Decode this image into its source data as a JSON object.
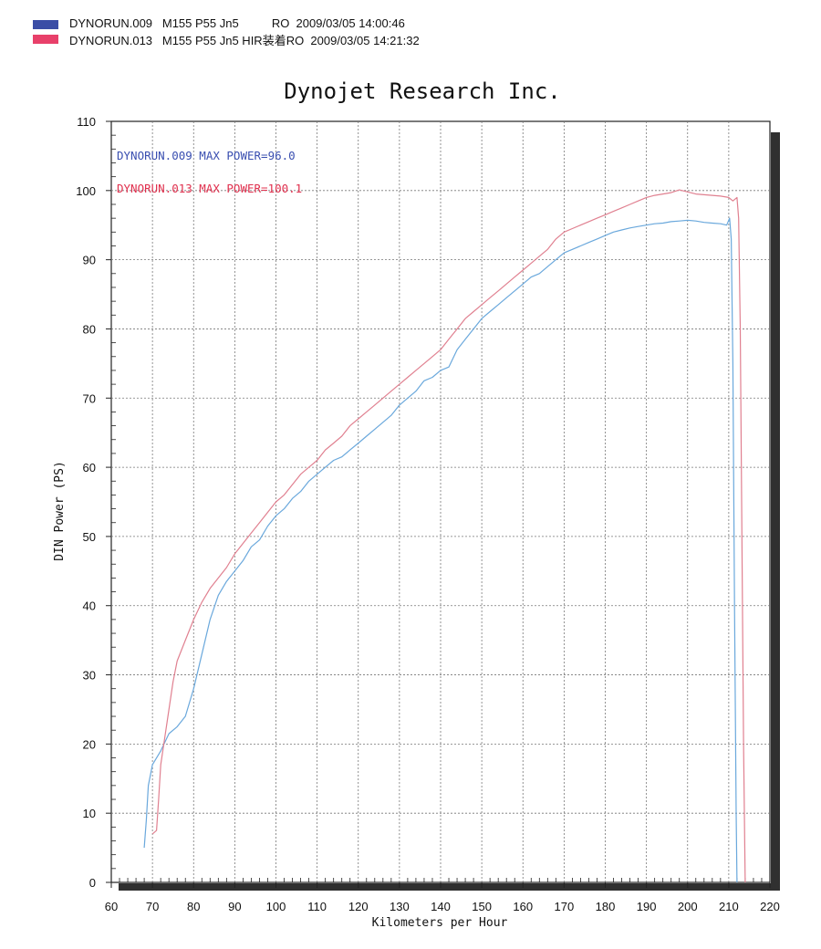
{
  "legend": [
    {
      "swatch_color": "#3b4ea6",
      "text": "DYNORUN.009   M155 P55 Jn5          RO  2009/03/05 14:00:46"
    },
    {
      "swatch_color": "#e8406a",
      "text": "DYNORUN.013   M155 P55 Jn5 HIR装着RO  2009/03/05 14:21:32"
    }
  ],
  "chart_data": {
    "type": "line",
    "title": "Dynojet Research Inc.",
    "xlabel": "Kilometers per Hour",
    "ylabel": "DIN Power (PS)",
    "xlim": [
      60,
      220
    ],
    "ylim": [
      0,
      110
    ],
    "x_ticks": [
      60,
      70,
      80,
      90,
      100,
      110,
      120,
      130,
      140,
      150,
      160,
      170,
      180,
      190,
      200,
      210,
      220
    ],
    "y_ticks": [
      0,
      10,
      20,
      30,
      40,
      50,
      60,
      70,
      80,
      90,
      100,
      110
    ],
    "grid": true,
    "annotations": [
      {
        "text": "DYNORUN.009  MAX POWER=96.0",
        "color": "#3a4fb0"
      },
      {
        "text": "DYNORUN.013  MAX POWER=100.1",
        "color": "#e0304e"
      }
    ],
    "series": [
      {
        "name": "DYNORUN.009",
        "color": "#6aa8dc",
        "points": [
          [
            68,
            5
          ],
          [
            68.5,
            9
          ],
          [
            69,
            14
          ],
          [
            70,
            17
          ],
          [
            72,
            19
          ],
          [
            74,
            21.5
          ],
          [
            76,
            22.5
          ],
          [
            78,
            24
          ],
          [
            80,
            28
          ],
          [
            82,
            33
          ],
          [
            84,
            38
          ],
          [
            86,
            41.5
          ],
          [
            88,
            43.5
          ],
          [
            90,
            45
          ],
          [
            92,
            46.5
          ],
          [
            94,
            48.5
          ],
          [
            96,
            49.5
          ],
          [
            98,
            51.5
          ],
          [
            100,
            53
          ],
          [
            102,
            54
          ],
          [
            104,
            55.5
          ],
          [
            106,
            56.5
          ],
          [
            108,
            58
          ],
          [
            110,
            59
          ],
          [
            112,
            60
          ],
          [
            114,
            61
          ],
          [
            116,
            61.5
          ],
          [
            118,
            62.5
          ],
          [
            120,
            63.5
          ],
          [
            122,
            64.5
          ],
          [
            124,
            65.5
          ],
          [
            126,
            66.5
          ],
          [
            128,
            67.5
          ],
          [
            130,
            69
          ],
          [
            132,
            70
          ],
          [
            134,
            71
          ],
          [
            136,
            72.5
          ],
          [
            138,
            73
          ],
          [
            140,
            74
          ],
          [
            142,
            74.5
          ],
          [
            144,
            77
          ],
          [
            146,
            78.5
          ],
          [
            148,
            80
          ],
          [
            150,
            81.5
          ],
          [
            152,
            82.5
          ],
          [
            154,
            83.5
          ],
          [
            156,
            84.5
          ],
          [
            158,
            85.5
          ],
          [
            160,
            86.5
          ],
          [
            162,
            87.5
          ],
          [
            164,
            88
          ],
          [
            166,
            89
          ],
          [
            168,
            90
          ],
          [
            170,
            91
          ],
          [
            172,
            91.5
          ],
          [
            174,
            92
          ],
          [
            176,
            92.5
          ],
          [
            178,
            93
          ],
          [
            180,
            93.5
          ],
          [
            182,
            94
          ],
          [
            184,
            94.3
          ],
          [
            186,
            94.6
          ],
          [
            188,
            94.8
          ],
          [
            190,
            95
          ],
          [
            192,
            95.2
          ],
          [
            194,
            95.3
          ],
          [
            196,
            95.5
          ],
          [
            198,
            95.6
          ],
          [
            200,
            95.7
          ],
          [
            202,
            95.6
          ],
          [
            204,
            95.4
          ],
          [
            206,
            95.3
          ],
          [
            208,
            95.2
          ],
          [
            209.5,
            95
          ],
          [
            210.2,
            96
          ],
          [
            210.6,
            93
          ],
          [
            211,
            75
          ],
          [
            211.4,
            40
          ],
          [
            211.8,
            10
          ],
          [
            212,
            0
          ]
        ]
      },
      {
        "name": "DYNORUN.013",
        "color": "#e08090",
        "points": [
          [
            70,
            7
          ],
          [
            71,
            7.5
          ],
          [
            71.5,
            12
          ],
          [
            72,
            17
          ],
          [
            73,
            21
          ],
          [
            74,
            25
          ],
          [
            75,
            29
          ],
          [
            76,
            32
          ],
          [
            78,
            35
          ],
          [
            80,
            38
          ],
          [
            82,
            40.5
          ],
          [
            84,
            42.5
          ],
          [
            86,
            44
          ],
          [
            88,
            45.5
          ],
          [
            90,
            47.5
          ],
          [
            92,
            49
          ],
          [
            94,
            50.5
          ],
          [
            96,
            52
          ],
          [
            98,
            53.5
          ],
          [
            100,
            55
          ],
          [
            102,
            56
          ],
          [
            104,
            57.5
          ],
          [
            106,
            59
          ],
          [
            108,
            60
          ],
          [
            110,
            61
          ],
          [
            112,
            62.5
          ],
          [
            114,
            63.5
          ],
          [
            116,
            64.5
          ],
          [
            118,
            66
          ],
          [
            120,
            67
          ],
          [
            122,
            68
          ],
          [
            124,
            69
          ],
          [
            126,
            70
          ],
          [
            128,
            71
          ],
          [
            130,
            72
          ],
          [
            132,
            73
          ],
          [
            134,
            74
          ],
          [
            136,
            75
          ],
          [
            138,
            76
          ],
          [
            140,
            77
          ],
          [
            142,
            78.5
          ],
          [
            144,
            80
          ],
          [
            146,
            81.5
          ],
          [
            148,
            82.5
          ],
          [
            150,
            83.5
          ],
          [
            152,
            84.5
          ],
          [
            154,
            85.5
          ],
          [
            156,
            86.5
          ],
          [
            158,
            87.5
          ],
          [
            160,
            88.5
          ],
          [
            162,
            89.5
          ],
          [
            164,
            90.5
          ],
          [
            166,
            91.5
          ],
          [
            168,
            93
          ],
          [
            170,
            94
          ],
          [
            172,
            94.5
          ],
          [
            174,
            95
          ],
          [
            176,
            95.5
          ],
          [
            178,
            96
          ],
          [
            180,
            96.5
          ],
          [
            182,
            97
          ],
          [
            184,
            97.5
          ],
          [
            186,
            98
          ],
          [
            188,
            98.5
          ],
          [
            190,
            99
          ],
          [
            192,
            99.3
          ],
          [
            194,
            99.5
          ],
          [
            196,
            99.7
          ],
          [
            198,
            100.1
          ],
          [
            200,
            99.8
          ],
          [
            202,
            99.5
          ],
          [
            204,
            99.4
          ],
          [
            206,
            99.3
          ],
          [
            208,
            99.2
          ],
          [
            210,
            99
          ],
          [
            211,
            98.5
          ],
          [
            212,
            99
          ],
          [
            212.4,
            96
          ],
          [
            212.8,
            80
          ],
          [
            213.2,
            50
          ],
          [
            213.6,
            20
          ],
          [
            214,
            0
          ]
        ]
      }
    ]
  }
}
